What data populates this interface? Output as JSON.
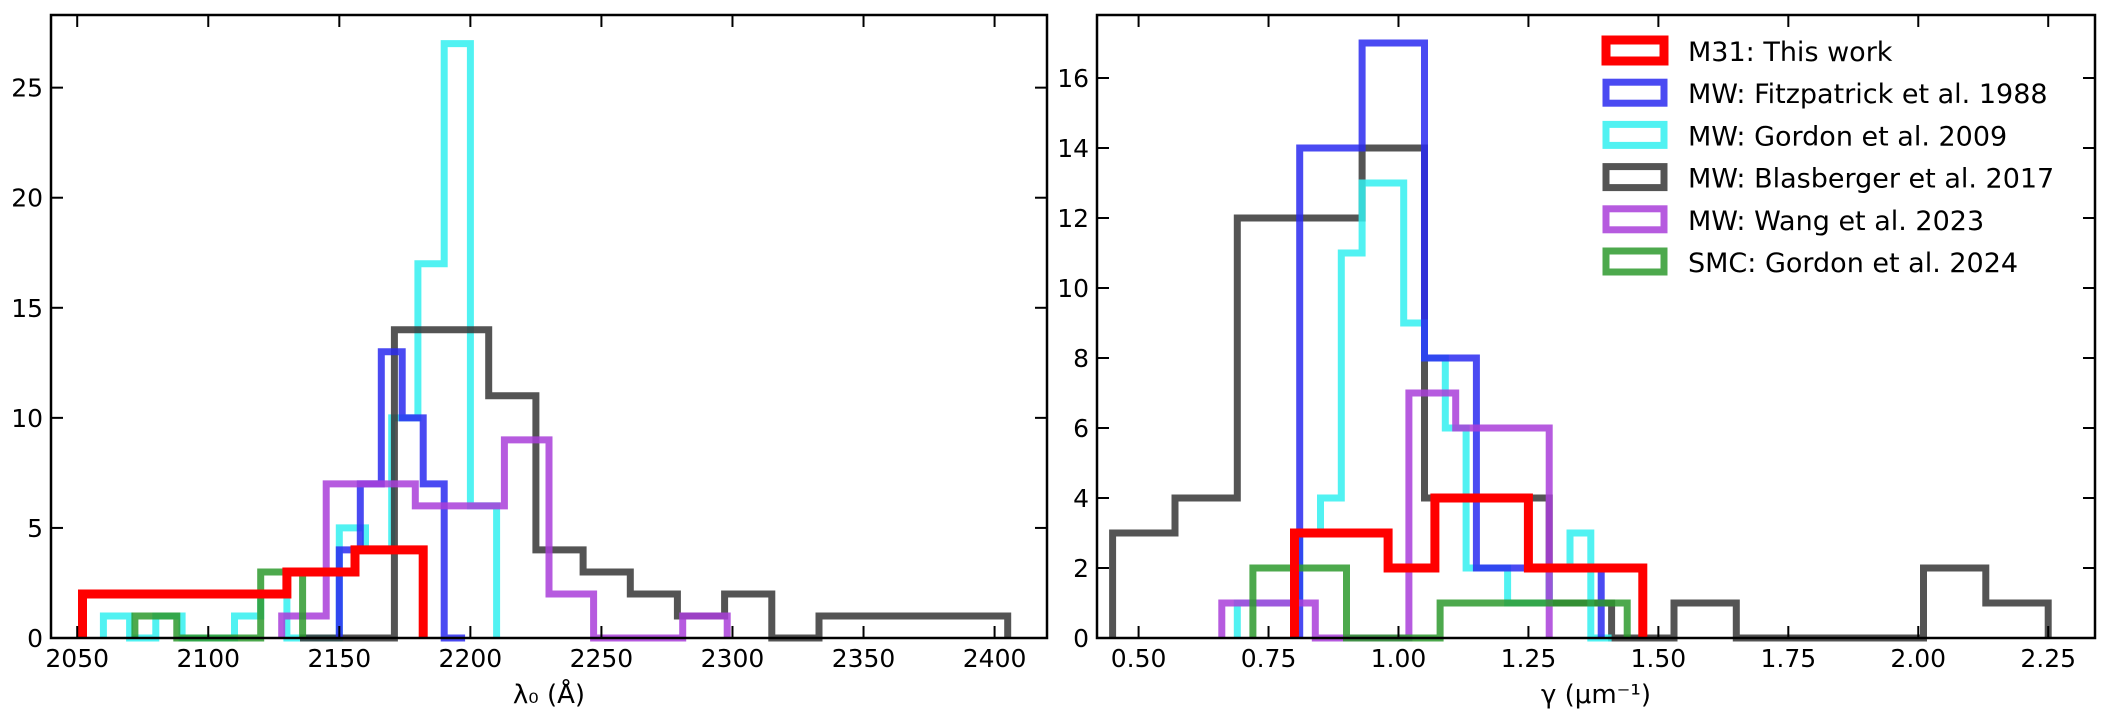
{
  "chart_data": [
    {
      "type": "histogram",
      "xlabel": "λ₀ (Å)",
      "ylabel": "",
      "xlim": [
        2040,
        2420
      ],
      "ylim": [
        0,
        28.3
      ],
      "xticks": [
        2050,
        2100,
        2150,
        2200,
        2250,
        2300,
        2350,
        2400
      ],
      "yticks": [
        0,
        5,
        10,
        15,
        20,
        25
      ],
      "series": [
        {
          "name": "MW: Gordon et al. 2009",
          "color": "#33f0f0",
          "edges": [
            2060,
            2070,
            2080,
            2090,
            2100,
            2110,
            2120,
            2130,
            2140,
            2150,
            2160,
            2170,
            2180,
            2190,
            2200,
            2210
          ],
          "counts": [
            1,
            0,
            1,
            0,
            0,
            1,
            2,
            0,
            0,
            5,
            4,
            10,
            17,
            27,
            6
          ]
        },
        {
          "name": "MW: Blasberger et al. 2017",
          "color": "#363636",
          "edges": [
            2135,
            2153,
            2171,
            2189,
            2207,
            2225,
            2243,
            2261,
            2279,
            2297,
            2315,
            2333,
            2351,
            2369,
            2387,
            2405
          ],
          "counts": [
            0,
            0,
            14,
            14,
            11,
            4,
            3,
            2,
            1,
            2,
            0,
            1,
            1,
            1,
            1
          ]
        },
        {
          "name": "MW: Fitzpatrick et al. 1988",
          "color": "#2a2af0",
          "edges": [
            2150,
            2158,
            2166,
            2174,
            2182,
            2190,
            2198
          ],
          "counts": [
            4,
            7,
            13,
            10,
            7,
            0
          ]
        },
        {
          "name": "MW: Wang et al. 2023",
          "color": "#a93ed9",
          "edges": [
            2128,
            2145,
            2162,
            2179,
            2196,
            2213,
            2230,
            2247,
            2264,
            2281,
            2298
          ],
          "counts": [
            1,
            7,
            7,
            6,
            6,
            9,
            2,
            0,
            0,
            1
          ]
        },
        {
          "name": "SMC: Gordon et al. 2024",
          "color": "#2e9a2e",
          "edges": [
            2072,
            2088,
            2104,
            2120,
            2136
          ],
          "counts": [
            1,
            0,
            0,
            3
          ]
        },
        {
          "name": "M31: This work",
          "color": "#ff0000",
          "edges": [
            2052,
            2078,
            2104,
            2130,
            2156,
            2182
          ],
          "counts": [
            2,
            2,
            2,
            3,
            4
          ]
        }
      ]
    },
    {
      "type": "histogram",
      "xlabel": "γ (μm⁻¹)",
      "ylabel": "",
      "xlim": [
        0.42,
        2.34
      ],
      "ylim": [
        0,
        17.8
      ],
      "xticks": [
        "0.50",
        "0.75",
        "1.00",
        "1.25",
        "1.50",
        "1.75",
        "2.00",
        "2.25"
      ],
      "yticks": [
        0,
        2,
        4,
        6,
        8,
        10,
        12,
        14,
        16
      ],
      "series": [
        {
          "name": "MW: Blasberger et al. 2017",
          "color": "#363636",
          "edges": [
            0.45,
            0.57,
            0.69,
            0.81,
            0.93,
            1.05,
            1.17,
            1.29,
            1.41,
            1.53,
            1.65,
            1.77,
            1.89,
            2.01,
            2.13,
            2.25
          ],
          "counts": [
            3,
            4,
            12,
            12,
            14,
            4,
            4,
            1,
            0,
            1,
            0,
            0,
            0,
            2,
            1
          ]
        },
        {
          "name": "MW: Gordon et al. 2009",
          "color": "#33f0f0",
          "edges": [
            0.69,
            0.73,
            0.77,
            0.81,
            0.85,
            0.89,
            0.93,
            0.97,
            1.01,
            1.05,
            1.09,
            1.13,
            1.17,
            1.21,
            1.25,
            1.29,
            1.33,
            1.37,
            1.41
          ],
          "counts": [
            1,
            1,
            1,
            3,
            4,
            11,
            13,
            13,
            9,
            8,
            6,
            2,
            2,
            1,
            1,
            2,
            3,
            0
          ]
        },
        {
          "name": "MW: Fitzpatrick et al. 1988",
          "color": "#2a2af0",
          "edges": [
            0.81,
            0.93,
            1.05,
            1.15,
            1.27,
            1.39
          ],
          "counts": [
            14,
            17,
            8,
            2,
            2
          ]
        },
        {
          "name": "MW: Wang et al. 2023",
          "color": "#a93ed9",
          "edges": [
            0.66,
            0.75,
            0.84,
            0.93,
            1.02,
            1.11,
            1.2,
            1.29
          ],
          "counts": [
            1,
            1,
            0,
            0,
            7,
            6,
            6
          ]
        },
        {
          "name": "SMC: Gordon et al. 2024",
          "color": "#2e9a2e",
          "edges": [
            0.72,
            0.81,
            0.9,
            0.99,
            1.08,
            1.17,
            1.26,
            1.35,
            1.44
          ],
          "counts": [
            2,
            2,
            0,
            0,
            1,
            1,
            1,
            1
          ]
        },
        {
          "name": "M31: This work",
          "color": "#ff0000",
          "edges": [
            0.8,
            0.89,
            0.98,
            1.07,
            1.16,
            1.25,
            1.34,
            1.43,
            1.47
          ],
          "counts": [
            3,
            3,
            2,
            4,
            4,
            2,
            2,
            2
          ]
        }
      ],
      "legend": {
        "position": "upper-right",
        "entries": [
          {
            "label": "M31: This work",
            "color": "#ff0000"
          },
          {
            "label": "MW: Fitzpatrick et al. 1988",
            "color": "#2a2af0"
          },
          {
            "label": "MW: Gordon et al. 2009",
            "color": "#33f0f0"
          },
          {
            "label": "MW: Blasberger et al. 2017",
            "color": "#363636"
          },
          {
            "label": "MW: Wang et al. 2023",
            "color": "#a93ed9"
          },
          {
            "label": "SMC: Gordon et al. 2024",
            "color": "#2e9a2e"
          }
        ]
      }
    }
  ]
}
